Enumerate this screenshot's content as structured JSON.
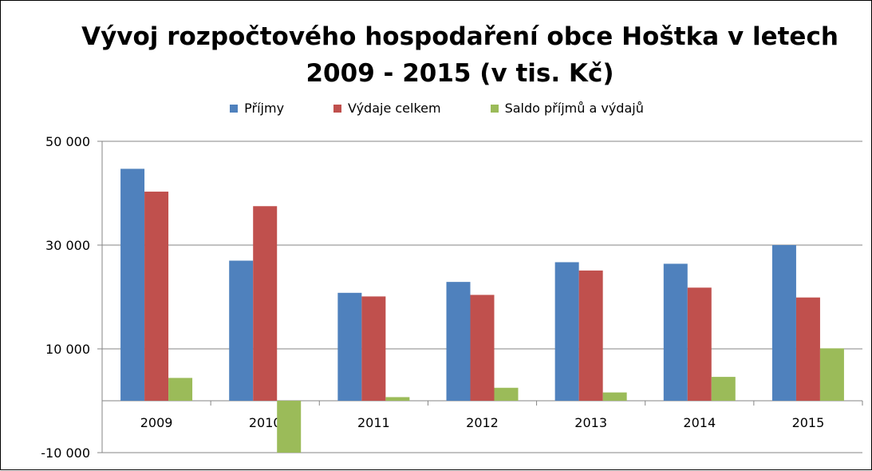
{
  "chart_data": {
    "type": "bar",
    "title": [
      "Vývoj rozpočtového hospodaření obce Hoštka v letech",
      "2009 - 2015 (v tis. Kč)"
    ],
    "xlabel": "",
    "ylabel": "",
    "categories": [
      "2009",
      "2010",
      "2011",
      "2012",
      "2013",
      "2014",
      "2015"
    ],
    "series": [
      {
        "name": "Příjmy",
        "color": "#4F81BD",
        "values": [
          44700,
          27000,
          20800,
          22900,
          26700,
          26400,
          30000
        ]
      },
      {
        "name": "Výdaje celkem",
        "color": "#C0504D",
        "values": [
          40300,
          37500,
          20100,
          20400,
          25100,
          21800,
          19900
        ]
      },
      {
        "name": "Saldo příjmů a výdajů",
        "color": "#9BBB59",
        "values": [
          4400,
          -10000,
          700,
          2500,
          1600,
          4600,
          10100
        ]
      }
    ],
    "ylim": [
      -10000,
      50000
    ],
    "yticks": [
      "-10 000",
      "10 000",
      "30 000",
      "50 000"
    ],
    "ytick_values": [
      -10000,
      10000,
      30000,
      50000
    ],
    "grid": true,
    "legend_position": "top"
  }
}
